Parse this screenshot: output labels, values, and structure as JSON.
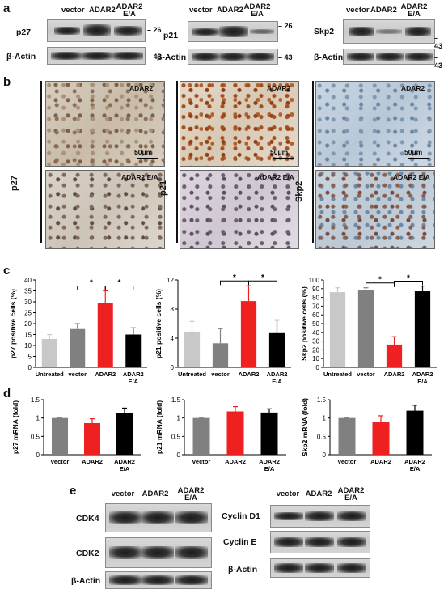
{
  "panels": {
    "a": "a",
    "b": "b",
    "c": "c",
    "d": "d",
    "e": "e"
  },
  "blots_a": [
    {
      "header": [
        "vector",
        "ADAR2",
        "ADAR2 E/A"
      ],
      "rows": [
        {
          "label": "p27",
          "mw": "– 26"
        },
        {
          "label": "β-Actin",
          "mw": "– 43"
        }
      ]
    },
    {
      "header": [
        "vector",
        "ADAR2",
        "ADAR2 E/A"
      ],
      "rows": [
        {
          "label": "p21",
          "mw": "– 26"
        },
        {
          "label": "β-Actin",
          "mw": "– 43"
        }
      ]
    },
    {
      "header": [
        "vector",
        "ADAR2",
        "ADAR2 E/A"
      ],
      "rows": [
        {
          "label": "Skp2",
          "mw": "– 43"
        },
        {
          "label": "β-Actin",
          "mw": "– 43"
        }
      ]
    }
  ],
  "ihc": {
    "columns": [
      {
        "label": "p27",
        "top": "ADAR2",
        "bottom": "ADAR2 E/A",
        "scale": "50μm"
      },
      {
        "label": "p21",
        "top": "ADAR2",
        "bottom": "ADAR2 E/A",
        "scale": "50μm"
      },
      {
        "label": "Skp2",
        "top": "ADAR2",
        "bottom": "ADAR2 E/A",
        "scale": "50μm"
      }
    ]
  },
  "colors": {
    "untreated": "#c8c8c8",
    "vector": "#808080",
    "adar2": "#ee2020",
    "adar2ea": "#000000"
  },
  "chart_data": [
    {
      "type": "bar",
      "panel": "c",
      "ylabel": "p27 positive cells (%)",
      "ylim": [
        0,
        40
      ],
      "yticks": [
        0,
        5,
        10,
        15,
        20,
        25,
        30,
        35,
        40
      ],
      "categories": [
        "Untreated",
        "vector",
        "ADAR2",
        "ADAR2 E/A"
      ],
      "values": [
        13,
        17.5,
        29.5,
        15
      ],
      "errors": [
        2,
        2.5,
        5.5,
        3
      ],
      "sig": [
        "*",
        "*"
      ]
    },
    {
      "type": "bar",
      "panel": "c",
      "ylabel": "p21 positive cells (%)",
      "ylim": [
        0,
        12
      ],
      "yticks": [
        0,
        4,
        8,
        12
      ],
      "categories": [
        "Untreated",
        "vector",
        "ADAR2",
        "ADAR2 E/A"
      ],
      "values": [
        4.9,
        3.3,
        9.1,
        4.8
      ],
      "errors": [
        1.4,
        2,
        2.1,
        1.7
      ],
      "sig": [
        "*",
        "*"
      ]
    },
    {
      "type": "bar",
      "panel": "c",
      "ylabel": "Skp2 positive cells (%)",
      "ylim": [
        0,
        100
      ],
      "yticks": [
        0,
        10,
        20,
        30,
        40,
        50,
        60,
        70,
        80,
        90,
        100
      ],
      "categories": [
        "Untreated",
        "vector",
        "ADAR2",
        "ADAR2 E/A"
      ],
      "values": [
        86,
        88,
        26,
        87
      ],
      "errors": [
        5,
        3,
        9,
        6
      ],
      "sig": [
        "*",
        "*"
      ]
    },
    {
      "type": "bar",
      "panel": "d",
      "ylabel": "p27 mRNA (fold)",
      "ylim": [
        0,
        1.5
      ],
      "yticks": [
        0,
        0.5,
        1,
        1.5
      ],
      "yticklabels": [
        "0",
        "0.5",
        "1",
        "1.5"
      ],
      "categories": [
        "vector",
        "ADAR2",
        "ADAR2 E/A"
      ],
      "values": [
        1.0,
        0.86,
        1.14
      ],
      "errors": [
        0.01,
        0.12,
        0.13
      ]
    },
    {
      "type": "bar",
      "panel": "d",
      "ylabel": "p21 mRNA (fold)",
      "ylim": [
        0,
        1.5
      ],
      "yticks": [
        0,
        0.5,
        1,
        1.5
      ],
      "yticklabels": [
        "0",
        "0.5",
        "1",
        "1.5"
      ],
      "categories": [
        "vector",
        "ADAR2",
        "ADAR2 E/A"
      ],
      "values": [
        1.0,
        1.18,
        1.15
      ],
      "errors": [
        0.01,
        0.13,
        0.1
      ]
    },
    {
      "type": "bar",
      "panel": "d",
      "ylabel": "Skp2 mRNA (fold)",
      "ylim": [
        0,
        1.5
      ],
      "yticks": [
        0,
        0.5,
        1,
        1.5
      ],
      "yticklabels": [
        "0",
        "0.5",
        "1",
        "1.5"
      ],
      "categories": [
        "vector",
        "ADAR2",
        "ADAR2 E/A"
      ],
      "values": [
        1.0,
        0.9,
        1.2
      ],
      "errors": [
        0.01,
        0.16,
        0.15
      ]
    }
  ],
  "blots_e": [
    {
      "header": [
        "vector",
        "ADAR2",
        "ADAR2 E/A"
      ],
      "rows": [
        "CDK4",
        "CDK2",
        "β-Actin"
      ]
    },
    {
      "header": [
        "vector",
        "ADAR2",
        "ADAR2 E/A"
      ],
      "rows": [
        "Cyclin D1",
        "Cyclin E",
        "β-Actin"
      ]
    }
  ]
}
